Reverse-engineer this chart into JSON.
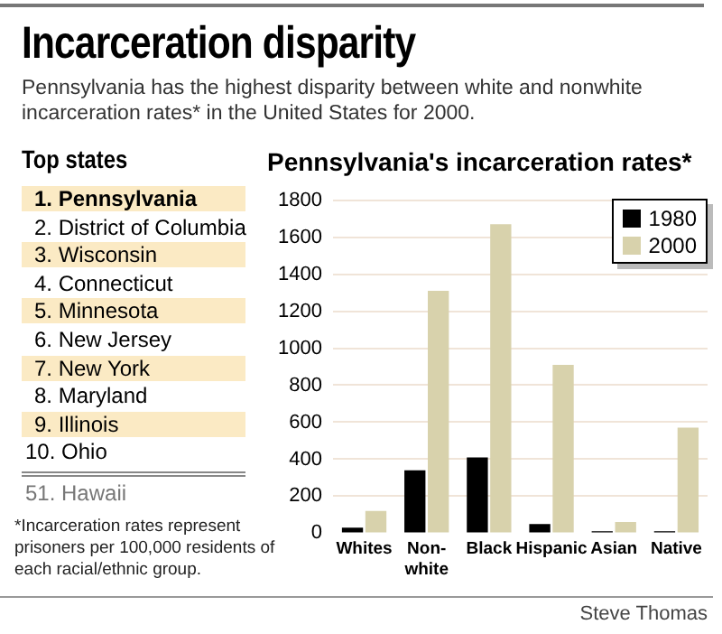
{
  "chart_data": [
    {
      "type": "other",
      "title": "Incarceration disparity",
      "subtitle": "Pennsylvania has the highest disparity between white and nonwhite incarceration rates* in the United States for 2000.",
      "annotations": [
        "Top states",
        "1. Pennsylvania",
        "2. District of Columbia",
        "3. Wisconsin",
        "4. Connecticut",
        "5. Minnesota",
        "6. New Jersey",
        "7. New York",
        "8. Maryland",
        "9. Illinois",
        "10. Ohio",
        "51. Hawaii",
        "*Incarceration rates represent prisoners per 100,000 residents of each racial/ethnic group.",
        "Steve Thomas"
      ]
    },
    {
      "type": "bar",
      "title": "Pennsylvania's incarceration rates*",
      "categories": [
        "Whites",
        "Non-white",
        "Black",
        "Hispanic",
        "Asian",
        "Native"
      ],
      "series": [
        {
          "name": "1980",
          "color": "#000000",
          "values": [
            30,
            340,
            410,
            50,
            10,
            10
          ]
        },
        {
          "name": "2000",
          "color": "#d8d2ac",
          "values": [
            120,
            1310,
            1670,
            910,
            60,
            570
          ]
        }
      ],
      "ylim": [
        0,
        1800
      ],
      "yticks": [
        0,
        200,
        400,
        600,
        800,
        1000,
        1200,
        1400,
        1600,
        1800
      ],
      "grid": "y",
      "legend": "top right"
    }
  ]
}
